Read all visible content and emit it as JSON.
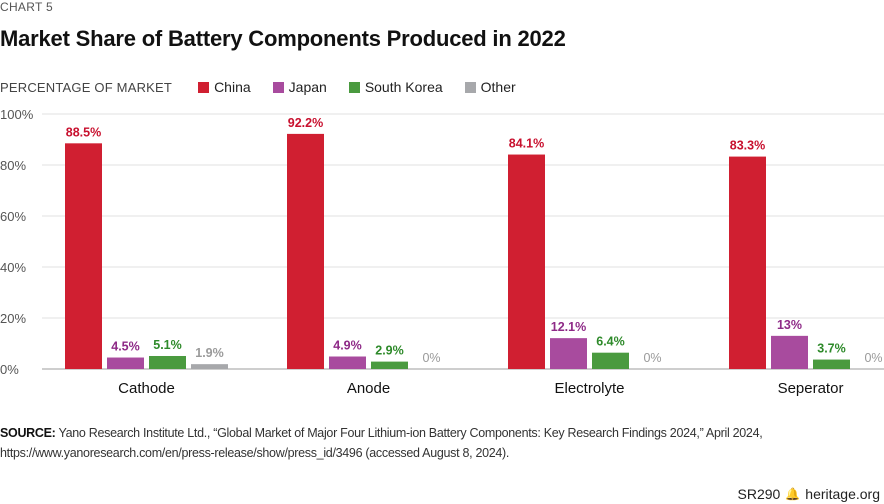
{
  "header": {
    "chart_number": "CHART 5",
    "title": "Market Share of Battery Components Produced in 2022"
  },
  "legend": {
    "ylabel": "PERCENTAGE OF MARKET",
    "items": [
      {
        "label": "China",
        "color": "#d01f31"
      },
      {
        "label": "Japan",
        "color": "#a84b9e"
      },
      {
        "label": "South Korea",
        "color": "#4a9a3f"
      },
      {
        "label": "Other",
        "color": "#a7a8ab"
      }
    ]
  },
  "chart_data": {
    "type": "bar",
    "title": "Market Share of Battery Components Produced in 2022",
    "xlabel": "",
    "ylabel": "PERCENTAGE OF MARKET",
    "ylim": [
      0,
      100
    ],
    "yticks": [
      0,
      20,
      40,
      60,
      80,
      100
    ],
    "ytick_labels": [
      "0%",
      "20%",
      "40%",
      "60%",
      "80%",
      "100%"
    ],
    "grid": true,
    "legend_position": "top-left",
    "categories": [
      "Cathode",
      "Anode",
      "Electrolyte",
      "Seperator"
    ],
    "series": [
      {
        "name": "China",
        "color": "#d01f31",
        "label_color": "#c8102e",
        "values": [
          88.5,
          92.2,
          84.1,
          83.3
        ],
        "labels": [
          "88.5%",
          "92.2%",
          "84.1%",
          "83.3%"
        ]
      },
      {
        "name": "Japan",
        "color": "#a84b9e",
        "label_color": "#8e2a87",
        "values": [
          4.5,
          4.9,
          12.1,
          13
        ],
        "labels": [
          "4.5%",
          "4.9%",
          "12.1%",
          "13%"
        ]
      },
      {
        "name": "South Korea",
        "color": "#4a9a3f",
        "label_color": "#2e8a2a",
        "values": [
          5.1,
          2.9,
          6.4,
          3.7
        ],
        "labels": [
          "5.1%",
          "2.9%",
          "6.4%",
          "3.7%"
        ]
      },
      {
        "name": "Other",
        "color": "#a7a8ab",
        "label_color": "#9a9a9a",
        "values": [
          1.9,
          0,
          0,
          0
        ],
        "labels": [
          "1.9%",
          "0%",
          "0%",
          "0%"
        ]
      }
    ]
  },
  "source": {
    "label": "SOURCE:",
    "text": "Yano Research Institute Ltd., “Global Market of Major Four Lithium-ion Battery Components: Key Research Findings 2024,” April 2024, https://www.yanoresearch.com/en/press-release/show/press_id/3496 (accessed August 8, 2024)."
  },
  "footer": {
    "report_id": "SR290",
    "icon": "liberty-bell-icon",
    "site": "heritage.org"
  }
}
